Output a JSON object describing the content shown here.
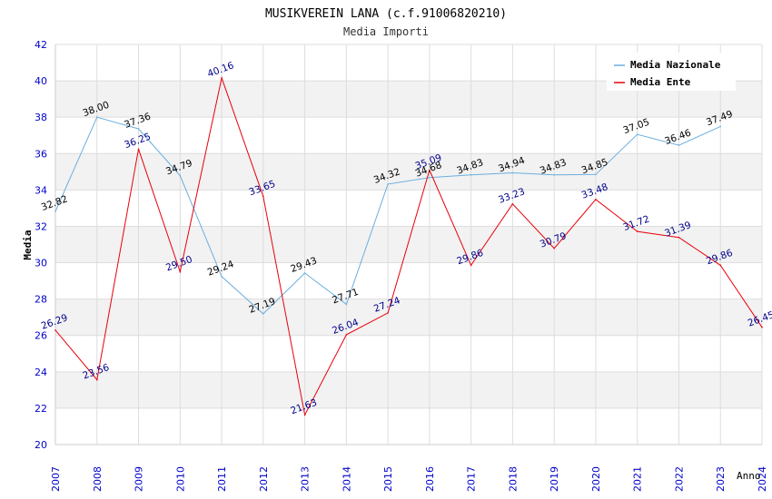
{
  "chart_data": {
    "type": "line",
    "title": "MUSIKVEREIN LANA (c.f.91006820210)",
    "subtitle": "Media Importi",
    "xlabel": "Anno",
    "ylabel": "Media",
    "ylim": [
      20,
      42
    ],
    "yticks": [
      "20",
      "22",
      "24",
      "26",
      "28",
      "30",
      "32",
      "34",
      "36",
      "38",
      "40",
      "42"
    ],
    "x": [
      "2007",
      "2008",
      "2009",
      "2010",
      "2011",
      "2012",
      "2013",
      "2014",
      "2015",
      "2016",
      "2017",
      "2018",
      "2019",
      "2020",
      "2021",
      "2022",
      "2023",
      "2024"
    ],
    "legend_position": "top-right",
    "series": [
      {
        "name": "Media Nazionale",
        "color": "#6aaee0",
        "label_color": "#000000",
        "values": [
          32.82,
          38.0,
          37.36,
          34.79,
          29.24,
          27.19,
          29.43,
          27.71,
          34.32,
          34.68,
          34.83,
          34.94,
          34.83,
          34.85,
          37.05,
          36.46,
          37.49,
          null
        ],
        "labels": [
          "32.82",
          "38.00",
          "37.36",
          "34.79",
          "29.24",
          "27.19",
          "29.43",
          "27.71",
          "34.32",
          "34.68",
          "34.83",
          "34.94",
          "34.83",
          "34.85",
          "37.05",
          "36.46",
          "37.49",
          null
        ]
      },
      {
        "name": "Media Ente",
        "color": "#e8000b",
        "label_color": "#00008b",
        "values": [
          26.29,
          23.56,
          36.25,
          29.5,
          40.16,
          33.65,
          21.63,
          26.04,
          27.24,
          35.09,
          29.86,
          33.23,
          30.79,
          33.48,
          31.72,
          31.39,
          29.86,
          26.45
        ],
        "labels": [
          "26.29",
          "23.56",
          "36.25",
          "29.50",
          "40.16",
          "33.65",
          "21.63",
          "26.04",
          "27.24",
          "35.09",
          "29.86",
          "33.23",
          "30.79",
          "33.48",
          "31.72",
          "31.39",
          "29.86",
          "26.45"
        ]
      }
    ],
    "colors": {
      "band": "#f2f2f2",
      "grid": "#dddddd",
      "tick_label": "#0000cc",
      "title": "#000000",
      "subtitle": "#333333"
    }
  }
}
